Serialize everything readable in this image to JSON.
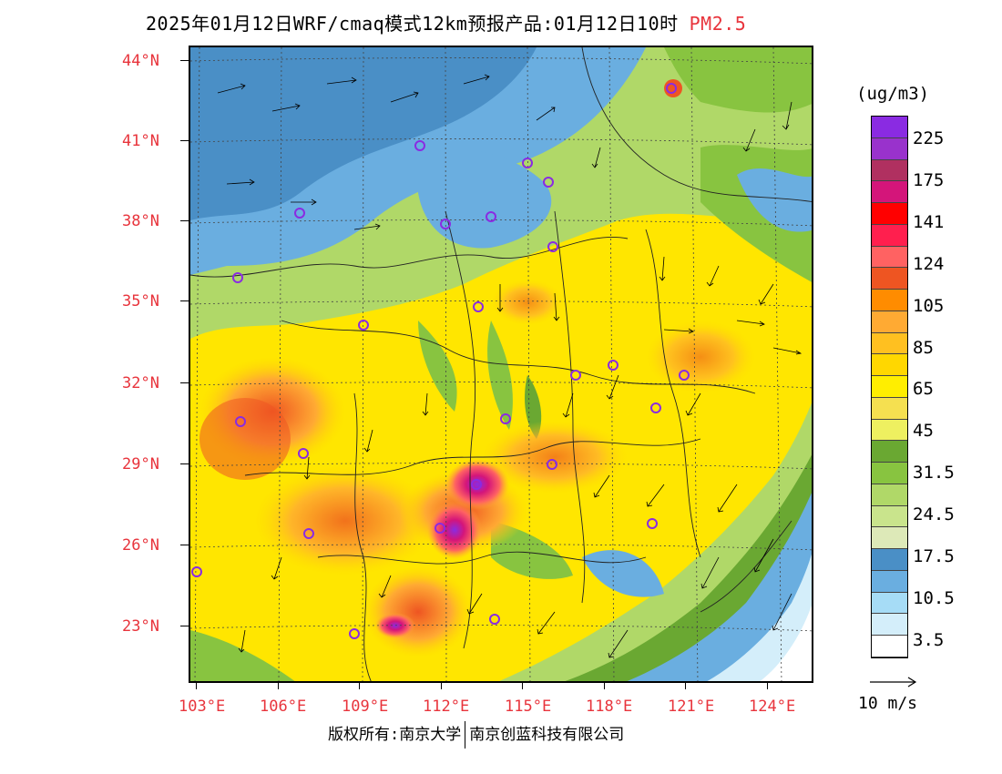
{
  "title": {
    "main": "2025年01月12日WRF/cmaq模式12km预报产品:01月12日10时",
    "variable": "PM2.5"
  },
  "lat_labels": [
    "44°N",
    "41°N",
    "38°N",
    "35°N",
    "32°N",
    "29°N",
    "26°N",
    "23°N"
  ],
  "lon_labels": [
    "103°E",
    "106°E",
    "109°E",
    "112°E",
    "115°E",
    "118°E",
    "121°E",
    "124°E"
  ],
  "legend": {
    "unit": "(ug/m3)",
    "labels": [
      "225",
      "175",
      "141",
      "124",
      "105",
      "85",
      "65",
      "45",
      "31.5",
      "24.5",
      "17.5",
      "10.5",
      "3.5"
    ],
    "colors": [
      "#8a2be2",
      "#9932cc",
      "#b03060",
      "#d4157a",
      "#ff0000",
      "#ff1f4e",
      "#ff6262",
      "#ee5522",
      "#ff8c00",
      "#ffaa33",
      "#ffc020",
      "#ffd700",
      "#ffee00",
      "#f5e050",
      "#eef060",
      "#6aa832",
      "#88c440",
      "#b0d868",
      "#c9e48c",
      "#dde9b8",
      "#4a8fc6",
      "#6aaee0",
      "#a6dcf6",
      "#d4eefa",
      "#ffffff"
    ]
  },
  "wind_reference": {
    "label": "10 m/s"
  },
  "copyright": {
    "left": "版权所有:南京大学",
    "right": "南京创蓝科技有限公司"
  },
  "colors": {
    "axis_labels": "#e8343c",
    "station_marker": "#8a2be2"
  }
}
